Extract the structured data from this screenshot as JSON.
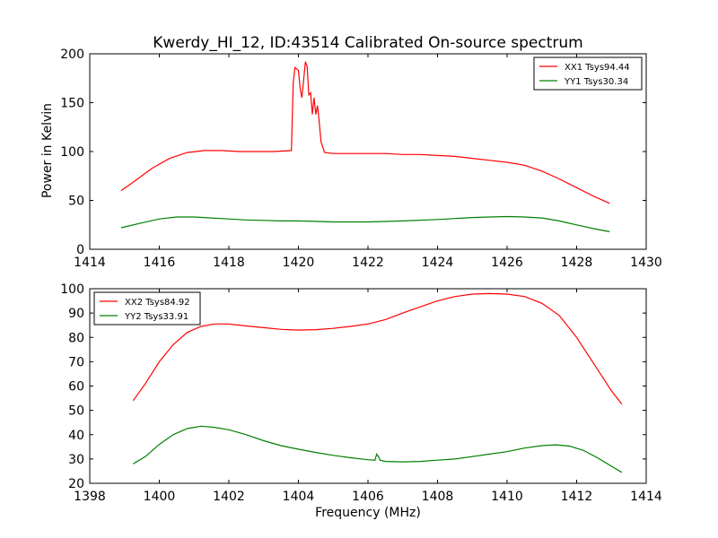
{
  "figure": {
    "title": "Kwerdy_HI_12, ID:43514 Calibrated On-source spectrum",
    "xlabel": "Frequency (MHz)",
    "ylabel": "Power in Kelvin"
  },
  "chart_data": [
    {
      "type": "line",
      "title": "Kwerdy_HI_12, ID:43514 Calibrated On-source spectrum",
      "xlabel": "",
      "ylabel": "Power in Kelvin",
      "xlim": [
        1414,
        1430
      ],
      "ylim": [
        0,
        200
      ],
      "xticks": [
        1414,
        1416,
        1418,
        1420,
        1422,
        1424,
        1426,
        1428,
        1430
      ],
      "yticks": [
        0,
        50,
        100,
        150,
        200
      ],
      "grid": false,
      "legend_position": "top-right",
      "series": [
        {
          "name": "XX1 Tsys94.44",
          "color": "#ff0000",
          "x": [
            1414.9,
            1415.3,
            1415.8,
            1416.3,
            1416.8,
            1417.3,
            1417.8,
            1418.3,
            1418.8,
            1419.3,
            1419.8,
            1419.85,
            1419.9,
            1420.0,
            1420.05,
            1420.1,
            1420.2,
            1420.25,
            1420.3,
            1420.35,
            1420.4,
            1420.45,
            1420.5,
            1420.55,
            1420.6,
            1420.65,
            1420.75,
            1421.0,
            1421.5,
            1422.0,
            1422.5,
            1423.0,
            1423.5,
            1424.0,
            1424.5,
            1425.0,
            1425.5,
            1426.0,
            1426.5,
            1427.0,
            1427.5,
            1428.0,
            1428.5,
            1428.95
          ],
          "y": [
            60,
            70,
            83,
            93,
            99,
            101,
            101,
            100,
            100,
            100,
            101,
            170,
            186,
            183,
            165,
            155,
            192,
            187,
            158,
            160,
            138,
            155,
            138,
            147,
            130,
            110,
            99,
            98,
            98,
            98,
            98,
            97,
            97,
            96,
            95,
            93,
            91,
            89,
            86,
            80,
            72,
            63,
            54,
            47
          ]
        },
        {
          "name": "YY1 Tsys30.34",
          "color": "#008000",
          "x": [
            1414.9,
            1415.5,
            1416.0,
            1416.5,
            1417.0,
            1417.5,
            1418.0,
            1418.5,
            1419.0,
            1419.5,
            1420.0,
            1420.5,
            1421.0,
            1422.0,
            1423.0,
            1424.0,
            1424.5,
            1425.0,
            1425.5,
            1426.0,
            1426.5,
            1427.0,
            1427.5,
            1428.0,
            1428.5,
            1428.95
          ],
          "y": [
            22,
            27,
            31,
            33,
            33,
            32,
            31,
            30,
            29.5,
            29,
            29,
            28.5,
            28,
            28,
            29,
            30.5,
            31.5,
            32.5,
            33,
            33.5,
            33,
            32,
            29,
            25,
            21,
            18
          ]
        }
      ]
    },
    {
      "type": "line",
      "title": "",
      "xlabel": "Frequency (MHz)",
      "ylabel": "",
      "xlim": [
        1398,
        1414
      ],
      "ylim": [
        20,
        100
      ],
      "xticks": [
        1398,
        1400,
        1402,
        1404,
        1406,
        1408,
        1410,
        1412,
        1414
      ],
      "yticks": [
        20,
        30,
        40,
        50,
        60,
        70,
        80,
        90,
        100
      ],
      "grid": false,
      "legend_position": "top-left",
      "series": [
        {
          "name": "XX2 Tsys84.92",
          "color": "#ff0000",
          "x": [
            1399.25,
            1399.6,
            1400.0,
            1400.4,
            1400.8,
            1401.2,
            1401.6,
            1402.0,
            1402.5,
            1403.0,
            1403.5,
            1404.0,
            1404.5,
            1405.0,
            1405.5,
            1406.0,
            1406.5,
            1407.0,
            1407.5,
            1408.0,
            1408.5,
            1409.0,
            1409.5,
            1410.0,
            1410.5,
            1411.0,
            1411.5,
            1412.0,
            1412.5,
            1413.0,
            1413.3
          ],
          "y": [
            54,
            61,
            70,
            77,
            82,
            84.5,
            85.5,
            85.5,
            84.7,
            84,
            83.3,
            83,
            83.2,
            83.7,
            84.5,
            85.5,
            87.3,
            90,
            92.5,
            95,
            96.8,
            97.8,
            98,
            97.8,
            96.8,
            94,
            89,
            80,
            69,
            58,
            52.5
          ]
        },
        {
          "name": "YY2 Tsys33.91",
          "color": "#008000",
          "x": [
            1399.25,
            1399.6,
            1400.0,
            1400.4,
            1400.8,
            1401.2,
            1401.6,
            1402.0,
            1402.5,
            1403.0,
            1403.5,
            1404.0,
            1404.5,
            1405.0,
            1405.5,
            1406.0,
            1406.2,
            1406.25,
            1406.3,
            1406.35,
            1406.5,
            1407.0,
            1407.5,
            1408.0,
            1408.5,
            1409.0,
            1409.5,
            1410.0,
            1410.5,
            1411.0,
            1411.4,
            1411.8,
            1412.2,
            1412.6,
            1413.0,
            1413.3
          ],
          "y": [
            28,
            31,
            36,
            40,
            42.5,
            43.5,
            43,
            42,
            40,
            37.5,
            35.5,
            34,
            32.7,
            31.5,
            30.5,
            29.7,
            29.5,
            32,
            31,
            29.5,
            29,
            28.8,
            29,
            29.5,
            30,
            31,
            32,
            33,
            34.5,
            35.5,
            35.8,
            35.3,
            33.5,
            30.5,
            27,
            24.5
          ]
        }
      ]
    }
  ]
}
